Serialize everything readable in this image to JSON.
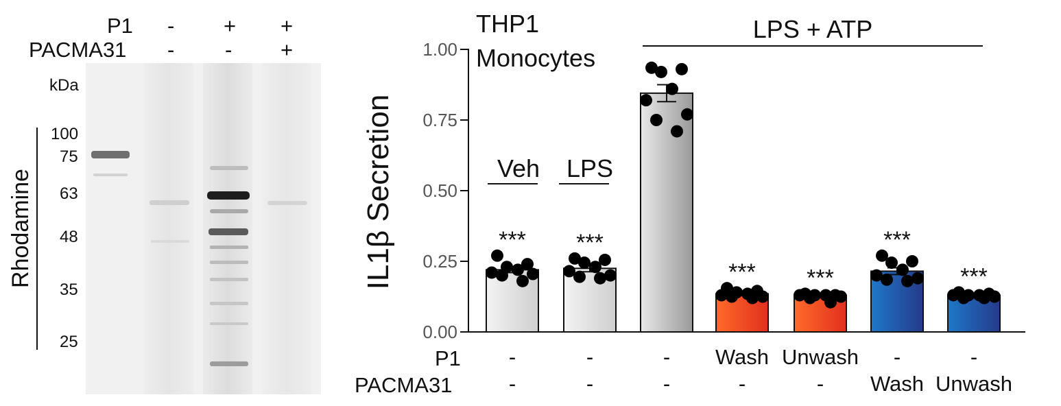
{
  "gel": {
    "header_rows": [
      {
        "label": "P1",
        "values": [
          "-",
          "+",
          "+"
        ]
      },
      {
        "label": "PACMA31",
        "values": [
          "-",
          "-",
          "+"
        ]
      }
    ],
    "unit": "kDa",
    "markers": [
      "100",
      "75",
      "63",
      "48",
      "35",
      "25"
    ],
    "side_label": "Rhodamine",
    "background": "#f2f2f2"
  },
  "chart_data": {
    "type": "bar",
    "title": "THP1",
    "subtitle": "Monocytes",
    "ylabel": "IL1β Secretion",
    "ylim": [
      0,
      1.0
    ],
    "yticks": [
      "0.00",
      "0.25",
      "0.50",
      "0.75",
      "1.00"
    ],
    "bracket_label": "LPS + ATP",
    "group_labels": [
      "Veh",
      "LPS"
    ],
    "row_labels": [
      "P1",
      "PACMA31"
    ],
    "conditions_p1": [
      "-",
      "-",
      "-",
      "Wash",
      "Unwash",
      "-",
      "-"
    ],
    "conditions_pacma31": [
      "-",
      "-",
      "-",
      "-",
      "-",
      "Wash",
      "Unwash"
    ],
    "values": [
      0.22,
      0.225,
      0.845,
      0.135,
      0.13,
      0.215,
      0.13
    ],
    "errors": [
      0.01,
      0.012,
      0.03,
      0.005,
      0.004,
      0.012,
      0.004
    ],
    "significance": [
      "***",
      "***",
      "",
      "***",
      "***",
      "***",
      "***"
    ],
    "points": [
      [
        0.27,
        0.24,
        0.23,
        0.22,
        0.21,
        0.205,
        0.2,
        0.18
      ],
      [
        0.26,
        0.255,
        0.245,
        0.23,
        0.215,
        0.2,
        0.195,
        0.19
      ],
      [
        0.935,
        0.93,
        0.92,
        0.86,
        0.82,
        0.77,
        0.75,
        0.71
      ],
      [
        0.155,
        0.145,
        0.14,
        0.135,
        0.13,
        0.125,
        0.125,
        0.12
      ],
      [
        0.135,
        0.13,
        0.13,
        0.13,
        0.13,
        0.125,
        0.12,
        0.105
      ],
      [
        0.27,
        0.25,
        0.245,
        0.22,
        0.2,
        0.19,
        0.185,
        0.18
      ],
      [
        0.14,
        0.135,
        0.13,
        0.13,
        0.13,
        0.125,
        0.12,
        0.12
      ]
    ],
    "colors": {
      "veh": [
        "#f3f3f3",
        "#cfcfcf"
      ],
      "lps": [
        "#f3f3f3",
        "#cfcfcf"
      ],
      "lps_atp": [
        "#e8e8e8",
        "#9a9a9a"
      ],
      "p1": [
        "#ff6a2a",
        "#e0301e"
      ],
      "pacma31": [
        "#1f78c8",
        "#263a8a"
      ]
    }
  }
}
